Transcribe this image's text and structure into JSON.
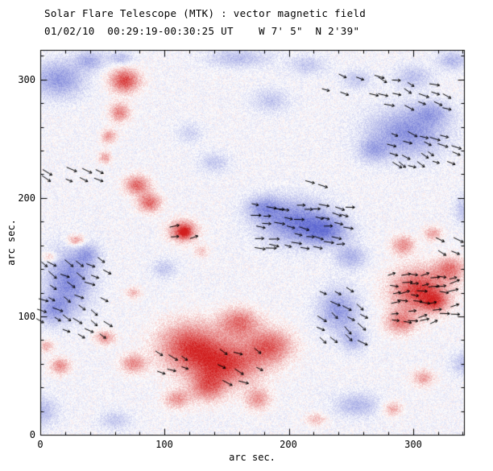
{
  "chart_data": {
    "type": "heatmap",
    "title": "Solar Flare Telescope (MTK) : vector magnetic field",
    "subtitle": "01/02/10  00:29:19-00:30:25 UT    W 7' 5\"  N 2'39\"",
    "xlabel": "arc sec.",
    "ylabel": "arc sec.",
    "x_range": [
      0,
      341
    ],
    "y_range": [
      0,
      325
    ],
    "x_ticks": [
      0,
      100,
      200,
      300
    ],
    "y_ticks": [
      0,
      100,
      200,
      300
    ],
    "minor_tick_interval": 20,
    "description": "Line-of-sight magnetogram: red = positive polarity, blue = negative polarity; short black segments with arrowheads show transverse field vectors.",
    "noise_seed": 42,
    "colormap": {
      "background": "#ffffff",
      "positive_max": [
        210,
        30,
        30
      ],
      "negative_max": [
        95,
        105,
        210
      ],
      "noise_amplitude": 0.15,
      "base_level": -0.05
    },
    "blob_format": "[x_arcsec, y_arcsec, rx_arcsec, ry_arcsec, signed_amplitude]",
    "field_blobs": [
      [
        68,
        299,
        12,
        10,
        0.85
      ],
      [
        64,
        272,
        8,
        8,
        0.6
      ],
      [
        55,
        252,
        6,
        6,
        0.5
      ],
      [
        52,
        234,
        5,
        5,
        0.45
      ],
      [
        78,
        211,
        10,
        8,
        0.7
      ],
      [
        88,
        196,
        9,
        8,
        0.7
      ],
      [
        115,
        172,
        11,
        9,
        0.85
      ],
      [
        116,
        171,
        4,
        4,
        0.5
      ],
      [
        29,
        164,
        7,
        5,
        0.55
      ],
      [
        8,
        150,
        6,
        4,
        0.4
      ],
      [
        75,
        120,
        6,
        5,
        0.35
      ],
      [
        130,
        155,
        6,
        5,
        0.3
      ],
      [
        120,
        75,
        25,
        20,
        0.8
      ],
      [
        150,
        60,
        28,
        18,
        0.85
      ],
      [
        185,
        75,
        18,
        14,
        0.7
      ],
      [
        160,
        95,
        16,
        12,
        0.65
      ],
      [
        135,
        40,
        14,
        12,
        0.6
      ],
      [
        110,
        30,
        10,
        8,
        0.5
      ],
      [
        175,
        30,
        10,
        9,
        0.5
      ],
      [
        75,
        60,
        10,
        8,
        0.55
      ],
      [
        52,
        82,
        8,
        6,
        0.5
      ],
      [
        16,
        58,
        8,
        7,
        0.55
      ],
      [
        5,
        75,
        6,
        5,
        0.4
      ],
      [
        305,
        122,
        22,
        18,
        0.9
      ],
      [
        318,
        112,
        10,
        8,
        0.55
      ],
      [
        290,
        95,
        12,
        10,
        0.6
      ],
      [
        330,
        140,
        12,
        10,
        0.6
      ],
      [
        292,
        160,
        9,
        8,
        0.55
      ],
      [
        316,
        170,
        7,
        6,
        0.45
      ],
      [
        308,
        48,
        9,
        7,
        0.45
      ],
      [
        283,
        22,
        8,
        6,
        0.4
      ],
      [
        222,
        13,
        8,
        5,
        0.35
      ],
      [
        15,
        300,
        20,
        15,
        -0.6
      ],
      [
        40,
        316,
        12,
        8,
        -0.45
      ],
      [
        65,
        318,
        10,
        6,
        -0.35
      ],
      [
        160,
        318,
        25,
        8,
        -0.35
      ],
      [
        215,
        312,
        15,
        8,
        -0.3
      ],
      [
        255,
        300,
        12,
        8,
        -0.3
      ],
      [
        300,
        302,
        15,
        10,
        -0.35
      ],
      [
        332,
        316,
        12,
        8,
        -0.4
      ],
      [
        295,
        255,
        30,
        20,
        -0.65
      ],
      [
        315,
        272,
        15,
        10,
        -0.4
      ],
      [
        268,
        240,
        12,
        10,
        -0.4
      ],
      [
        341,
        190,
        8,
        12,
        -0.35
      ],
      [
        23,
        130,
        18,
        25,
        -0.7
      ],
      [
        10,
        105,
        12,
        12,
        -0.5
      ],
      [
        38,
        152,
        10,
        10,
        -0.45
      ],
      [
        205,
        180,
        28,
        18,
        -0.75
      ],
      [
        230,
        172,
        18,
        12,
        -0.6
      ],
      [
        180,
        192,
        14,
        10,
        -0.5
      ],
      [
        250,
        150,
        12,
        10,
        -0.45
      ],
      [
        240,
        105,
        16,
        18,
        -0.6
      ],
      [
        252,
        80,
        10,
        10,
        -0.4
      ],
      [
        140,
        230,
        12,
        8,
        -0.3
      ],
      [
        120,
        255,
        10,
        8,
        -0.25
      ],
      [
        100,
        140,
        10,
        8,
        -0.3
      ],
      [
        185,
        282,
        15,
        10,
        -0.3
      ],
      [
        0,
        20,
        14,
        12,
        -0.4
      ],
      [
        255,
        25,
        18,
        10,
        -0.4
      ],
      [
        341,
        60,
        10,
        10,
        -0.35
      ],
      [
        60,
        12,
        12,
        8,
        -0.3
      ]
    ],
    "vectors": {
      "color": "#000000",
      "length_arcsec": 8
    },
    "vector_cluster_format": "grid of short transverse-field strokes: x0..x1, y0..y1 arcsec, step, mean screen angle deg, random spread deg",
    "vector_clusters": [
      {
        "x0": 278,
        "x1": 335,
        "y0": 278,
        "y1": 302,
        "step": 10,
        "angle": -20,
        "spread": 18
      },
      {
        "x0": 232,
        "x1": 272,
        "y0": 290,
        "y1": 308,
        "step": 13,
        "angle": -20,
        "spread": 15
      },
      {
        "x0": 285,
        "x1": 338,
        "y0": 228,
        "y1": 258,
        "step": 8,
        "angle": -25,
        "spread": 15
      },
      {
        "x0": 5,
        "x1": 45,
        "y0": 214,
        "y1": 228,
        "step": 10,
        "angle": -30,
        "spread": 10
      },
      {
        "x0": 2,
        "x1": 58,
        "y0": 86,
        "y1": 154,
        "step": 10,
        "angle": -28,
        "spread": 15
      },
      {
        "x0": 175,
        "x1": 250,
        "y0": 160,
        "y1": 195,
        "step": 8,
        "angle": -8,
        "spread": 12
      },
      {
        "x0": 228,
        "x1": 264,
        "y0": 80,
        "y1": 122,
        "step": 10,
        "angle": -35,
        "spread": 15
      },
      {
        "x0": 285,
        "x1": 340,
        "y0": 95,
        "y1": 135,
        "step": 8,
        "angle": 8,
        "spread": 18
      },
      {
        "x0": 110,
        "x1": 126,
        "y0": 166,
        "y1": 178,
        "step": 12,
        "angle": 10,
        "spread": 10
      },
      {
        "x0": 95,
        "x1": 122,
        "y0": 55,
        "y1": 78,
        "step": 12,
        "angle": -25,
        "spread": 15
      },
      {
        "x0": 148,
        "x1": 178,
        "y0": 42,
        "y1": 70,
        "step": 14,
        "angle": -20,
        "spread": 20
      },
      {
        "x0": 218,
        "x1": 235,
        "y0": 211,
        "y1": 221,
        "step": 12,
        "angle": -15,
        "spread": 10
      },
      {
        "x0": 324,
        "x1": 338,
        "y0": 152,
        "y1": 166,
        "step": 12,
        "angle": -25,
        "spread": 10
      }
    ]
  }
}
